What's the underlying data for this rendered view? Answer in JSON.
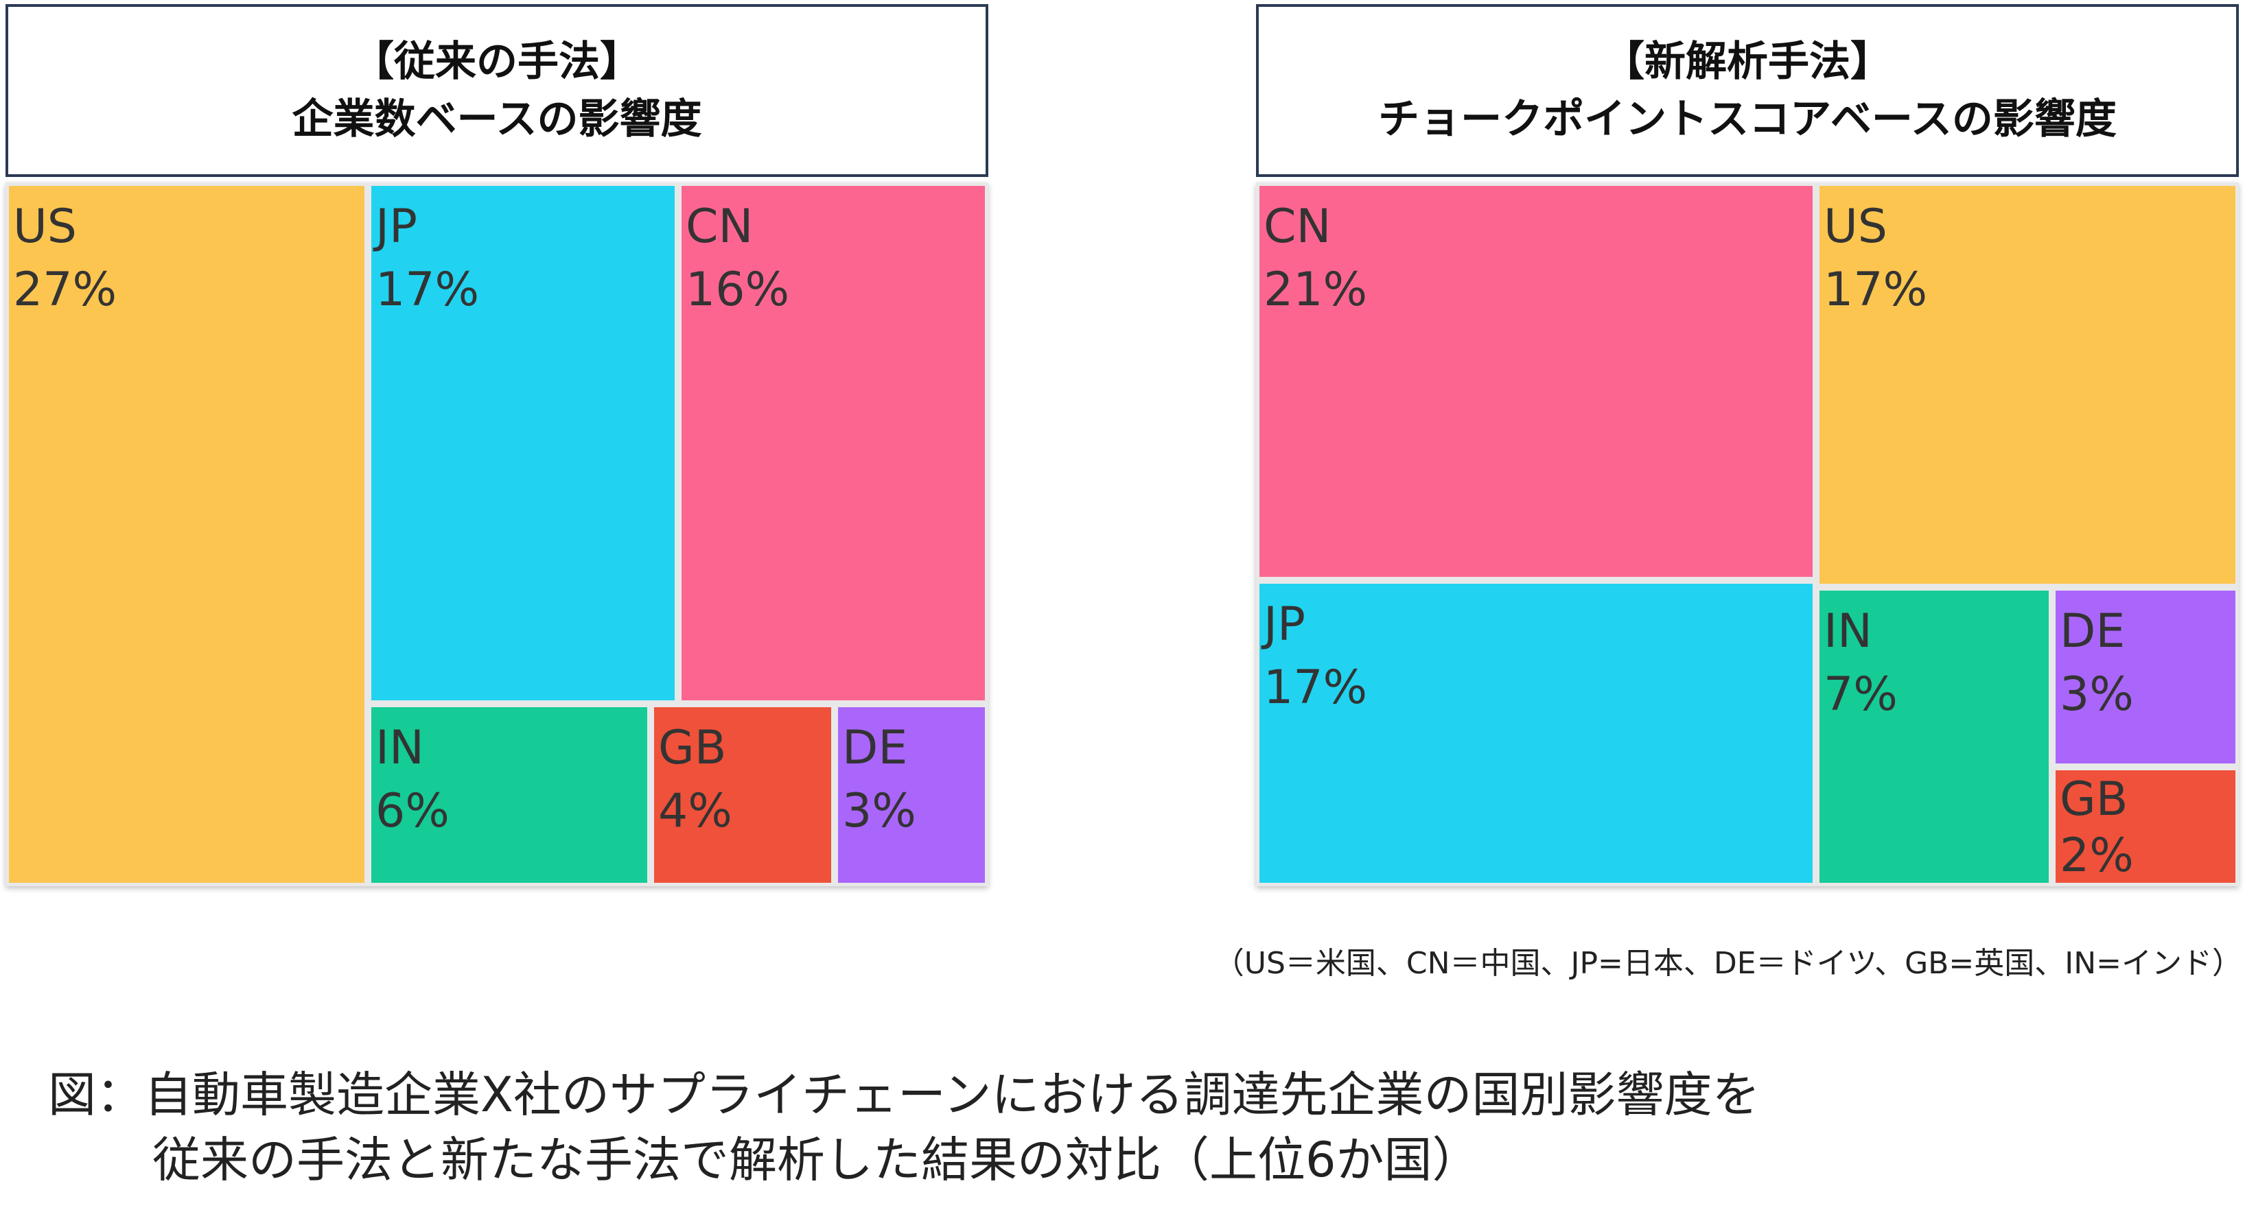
{
  "panels": [
    {
      "title_line1": "【従来の手法】",
      "title_line2": "企業数ベースの影響度",
      "tiles": [
        {
          "code": "US",
          "pct": "27%",
          "color": "#fcc54f"
        },
        {
          "code": "JP",
          "pct": "17%",
          "color": "#21d3f0"
        },
        {
          "code": "CN",
          "pct": "16%",
          "color": "#fd6591"
        },
        {
          "code": "IN",
          "pct": "6%",
          "color": "#15cb96"
        },
        {
          "code": "GB",
          "pct": "4%",
          "color": "#f0513a"
        },
        {
          "code": "DE",
          "pct": "3%",
          "color": "#aa66fb"
        }
      ]
    },
    {
      "title_line1": "【新解析手法】",
      "title_line2": "チョークポイントスコアベースの影響度",
      "tiles": [
        {
          "code": "CN",
          "pct": "21%",
          "color": "#fd6591"
        },
        {
          "code": "US",
          "pct": "17%",
          "color": "#fcc54f"
        },
        {
          "code": "JP",
          "pct": "17%",
          "color": "#21d3f0"
        },
        {
          "code": "IN",
          "pct": "7%",
          "color": "#15cb96"
        },
        {
          "code": "DE",
          "pct": "3%",
          "color": "#aa66fb"
        },
        {
          "code": "GB",
          "pct": "2%",
          "color": "#f0513a"
        }
      ]
    }
  ],
  "chart_data": [
    {
      "type": "treemap",
      "title": "【従来の手法】企業数ベースの影響度",
      "categories": [
        "US",
        "JP",
        "CN",
        "IN",
        "GB",
        "DE"
      ],
      "values": [
        27,
        17,
        16,
        6,
        4,
        3
      ]
    },
    {
      "type": "treemap",
      "title": "【新解析手法】チョークポイントスコアベースの影響度",
      "categories": [
        "CN",
        "US",
        "JP",
        "IN",
        "DE",
        "GB"
      ],
      "values": [
        21,
        17,
        17,
        7,
        3,
        2
      ]
    }
  ],
  "legend_note": "（US＝米国、CN＝中国、JP=日本、DE＝ドイツ、GB=英国、IN=インド）",
  "caption": {
    "line1": "図：自動車製造企業X社のサプライチェーンにおける調達先企業の国別影響度を",
    "line2": "従来の手法と新たな手法で解析した結果の対比（上位6か国）"
  }
}
